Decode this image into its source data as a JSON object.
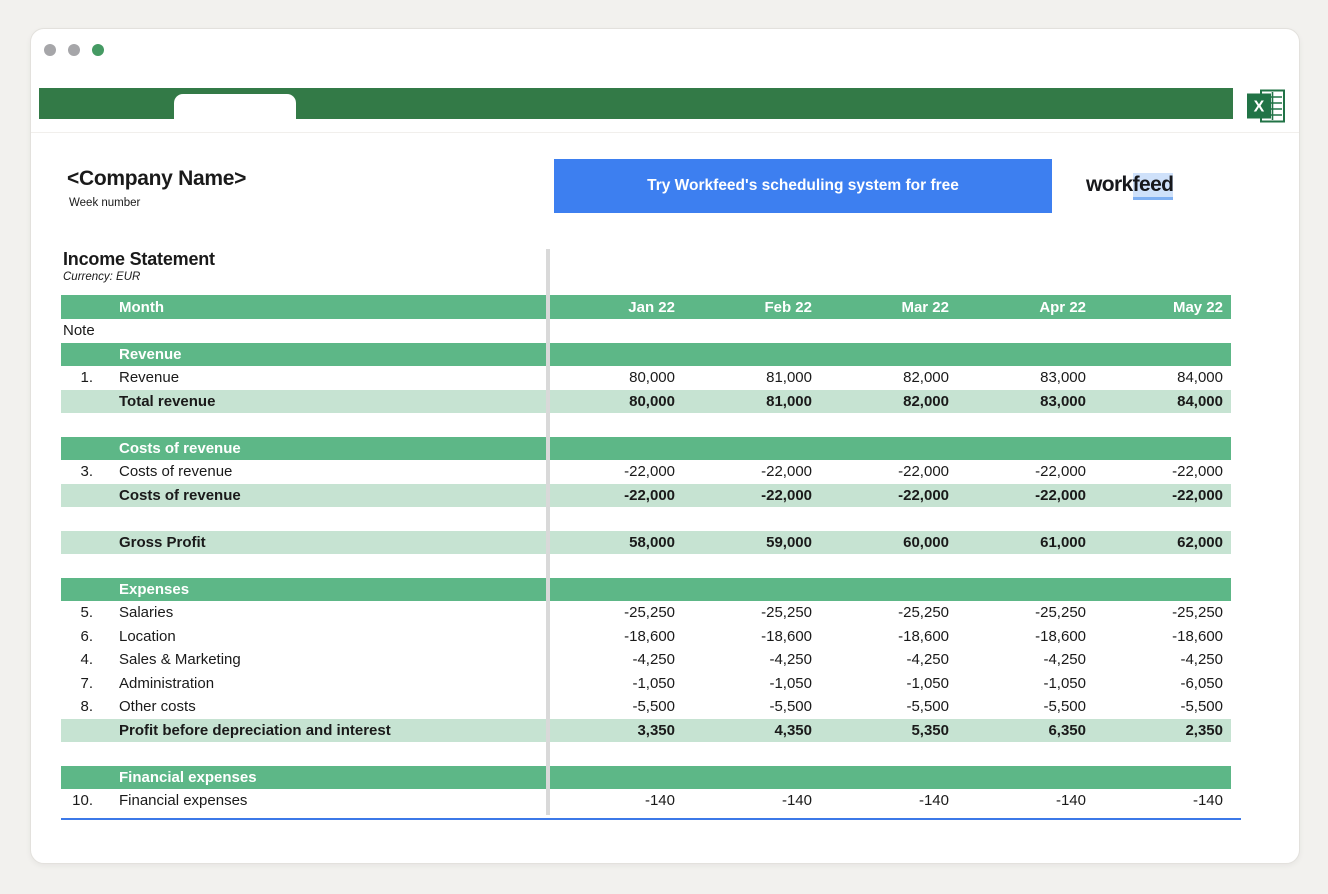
{
  "window": {
    "traffic_lights": [
      "gray",
      "gray",
      "green"
    ]
  },
  "header": {
    "company_name": "<Company Name>",
    "week_label": "Week number",
    "cta_label": "Try Workfeed's scheduling system for free",
    "logo_part1": "work",
    "logo_part2": "feed"
  },
  "statement": {
    "title": "Income Statement",
    "currency": "Currency: EUR",
    "month_label": "Month",
    "note_label": "Note",
    "columns": [
      "Jan 22",
      "Feb 22",
      "Mar 22",
      "Apr 22",
      "May 22"
    ],
    "rows": [
      {
        "type": "section",
        "label": "Revenue"
      },
      {
        "type": "item",
        "note": "1.",
        "label": "Revenue",
        "values": [
          "80,000",
          "81,000",
          "82,000",
          "83,000",
          "84,000"
        ]
      },
      {
        "type": "total",
        "label": "Total revenue",
        "values": [
          "80,000",
          "81,000",
          "82,000",
          "83,000",
          "84,000"
        ]
      },
      {
        "type": "spacer"
      },
      {
        "type": "section",
        "label": "Costs of revenue"
      },
      {
        "type": "item",
        "note": "3.",
        "label": "Costs of revenue",
        "values": [
          "-22,000",
          "-22,000",
          "-22,000",
          "-22,000",
          "-22,000"
        ]
      },
      {
        "type": "total",
        "label": "Costs of revenue",
        "values": [
          "-22,000",
          "-22,000",
          "-22,000",
          "-22,000",
          "-22,000"
        ]
      },
      {
        "type": "spacer"
      },
      {
        "type": "total",
        "label": "Gross Profit",
        "values": [
          "58,000",
          "59,000",
          "60,000",
          "61,000",
          "62,000"
        ]
      },
      {
        "type": "spacer"
      },
      {
        "type": "section",
        "label": "Expenses"
      },
      {
        "type": "item",
        "note": "5.",
        "label": "Salaries",
        "values": [
          "-25,250",
          "-25,250",
          "-25,250",
          "-25,250",
          "-25,250"
        ]
      },
      {
        "type": "item",
        "note": "6.",
        "label": "Location",
        "values": [
          "-18,600",
          "-18,600",
          "-18,600",
          "-18,600",
          "-18,600"
        ]
      },
      {
        "type": "item",
        "note": "4.",
        "label": "Sales & Marketing",
        "values": [
          "-4,250",
          "-4,250",
          "-4,250",
          "-4,250",
          "-4,250"
        ]
      },
      {
        "type": "item",
        "note": "7.",
        "label": "Administration",
        "values": [
          "-1,050",
          "-1,050",
          "-1,050",
          "-1,050",
          "-6,050"
        ]
      },
      {
        "type": "item",
        "note": "8.",
        "label": "Other costs",
        "values": [
          "-5,500",
          "-5,500",
          "-5,500",
          "-5,500",
          "-5,500"
        ]
      },
      {
        "type": "total",
        "label": "Profit before depreciation and interest",
        "values": [
          "3,350",
          "4,350",
          "5,350",
          "6,350",
          "2,350"
        ]
      },
      {
        "type": "spacer"
      },
      {
        "type": "section",
        "label": "Financial expenses"
      },
      {
        "type": "item",
        "note": "10.",
        "label": "Financial expenses",
        "values": [
          "-140",
          "-140",
          "-140",
          "-140",
          "-140"
        ]
      }
    ]
  },
  "colors": {
    "chrome_green": "#337a47",
    "header_green": "#5db787",
    "light_green": "#c6e3d2",
    "cta_blue": "#3d7ff0",
    "selection_blue": "#3c79e8",
    "excel_green": "#217346",
    "traffic_gray": "#a6a6a9",
    "traffic_green": "#459a63",
    "divider_gray": "#d9d9d9"
  }
}
